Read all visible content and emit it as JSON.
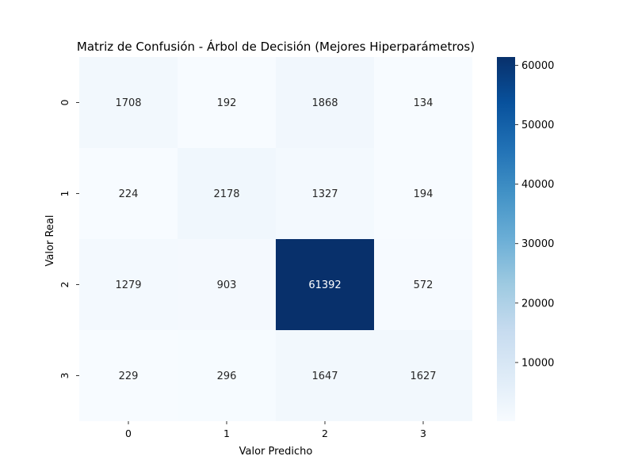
{
  "chart_data": {
    "type": "heatmap",
    "title": "Matriz de Confusión - Árbol de Decisión (Mejores Hiperparámetros)",
    "xlabel": "Valor Predicho",
    "ylabel": "Valor Real",
    "x_categories": [
      "0",
      "1",
      "2",
      "3"
    ],
    "y_categories": [
      "0",
      "1",
      "2",
      "3"
    ],
    "values": [
      [
        1708,
        192,
        1868,
        134
      ],
      [
        224,
        2178,
        1327,
        194
      ],
      [
        1279,
        903,
        61392,
        572
      ],
      [
        229,
        296,
        1647,
        1627
      ]
    ],
    "colormap": "Blues",
    "colorbar": {
      "min": 134,
      "max": 61392,
      "ticks": [
        "10000",
        "20000",
        "30000",
        "40000",
        "50000",
        "60000"
      ]
    },
    "colors": {
      "low": "#f7fbff",
      "high": "#08306b"
    }
  }
}
